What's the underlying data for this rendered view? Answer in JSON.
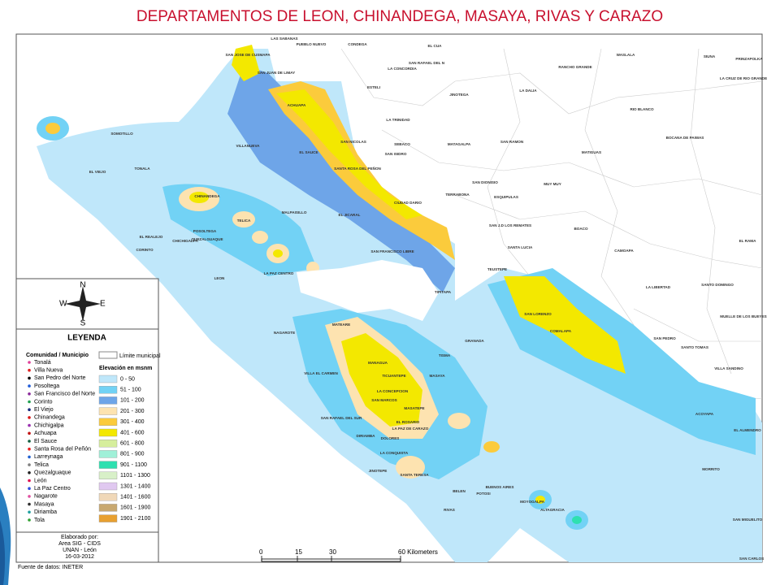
{
  "title": "DEPARTAMENTOS DE LEON, CHINANDEGA, MASAYA, RIVAS Y CARAZO",
  "compass": {
    "n": "N",
    "s": "S",
    "e": "E",
    "w": "W"
  },
  "legend": {
    "heading": "LEYENDA",
    "communities_heading": "Comunidad / Municipio",
    "communities": [
      {
        "name": "Tonalá",
        "color": "#e0409a"
      },
      {
        "name": "Villa Nueva",
        "color": "#e02020"
      },
      {
        "name": "San Pedro del Norte",
        "color": "#000000"
      },
      {
        "name": "Posoltega",
        "color": "#1e5ad8"
      },
      {
        "name": "San Francisco del Norte",
        "color": "#8a2a9a"
      },
      {
        "name": "Corinto",
        "color": "#20a050"
      },
      {
        "name": "El Viejo",
        "color": "#1a2a80"
      },
      {
        "name": "Chinandega",
        "color": "#d81818"
      },
      {
        "name": "Chichigalpa",
        "color": "#9a30b0"
      },
      {
        "name": "Achuapa",
        "color": "#c01010"
      },
      {
        "name": "El Sauce",
        "color": "#106040"
      },
      {
        "name": "Santa Rosa del Peñón",
        "color": "#e82020"
      },
      {
        "name": "Larreynaga",
        "color": "#2060d0"
      },
      {
        "name": "Telica",
        "color": "#808080"
      },
      {
        "name": "Quezalguaque",
        "color": "#202020"
      },
      {
        "name": "León",
        "color": "#e01050"
      },
      {
        "name": "La Paz Centro",
        "color": "#3050e0"
      },
      {
        "name": "Nagarote",
        "color": "#e050a0"
      },
      {
        "name": "Masaya",
        "color": "#303030"
      },
      {
        "name": "Diriamba",
        "color": "#20a0a0"
      },
      {
        "name": "Tola",
        "color": "#30a030"
      }
    ],
    "boundary_label": "Límite municipal",
    "elevation_heading": "Elevación en msnm",
    "elevation_classes": [
      {
        "label": "0 - 50",
        "color": "#bfe7fa"
      },
      {
        "label": "51 - 100",
        "color": "#72d2f5"
      },
      {
        "label": "101 - 200",
        "color": "#6ea5e8"
      },
      {
        "label": "201 - 300",
        "color": "#fde3b0"
      },
      {
        "label": "301 - 400",
        "color": "#fbcb3c"
      },
      {
        "label": "401 - 600",
        "color": "#f3e800"
      },
      {
        "label": "601 - 800",
        "color": "#d6ee9c"
      },
      {
        "label": "801 - 900",
        "color": "#a0f0d8"
      },
      {
        "label": "901 - 1100",
        "color": "#2ee0b0"
      },
      {
        "label": "1101 - 1300",
        "color": "#d8f0c8"
      },
      {
        "label": "1301 - 1400",
        "color": "#e0c8f0"
      },
      {
        "label": "1401 - 1600",
        "color": "#f0d8b8"
      },
      {
        "label": "1601 - 1900",
        "color": "#c8a870"
      },
      {
        "label": "1901 - 2100",
        "color": "#e8a030"
      }
    ]
  },
  "credits": {
    "lines": [
      "Elaborado por:",
      "Area SIG - CIDS",
      "UNAN - León",
      "16-03-2012"
    ],
    "source": "Fuente de datos: INETER"
  },
  "scale": {
    "labels": [
      "0",
      "15",
      "30",
      "60 Kilometers"
    ]
  },
  "places": [
    "LAS SABANAS",
    "PUEBLO NUEVO",
    "CONDEGA",
    "SAN JOSE DE CUSMAPA",
    "EL CUA",
    "WASLALA",
    "SIUNA",
    "PRINZAPOLKA",
    "RANCHO GRANDE",
    "SAN RAFAEL DEL N",
    "LA CONCORDIA",
    "SAN JUAN DE LIMAY",
    "ESTELI",
    "LA CRUZ DE RIO GRANDE",
    "LA DALIA",
    "JINOTEGA",
    "RIO BLANCO",
    "SOMOTILLO",
    "LA TRINIDAD",
    "SAN NICOLAS",
    "SEBACO",
    "MATAGALPA",
    "SAN RAMON",
    "MATIGUAS",
    "BOCANA DE PAIWAS",
    "SAN ISIDRO",
    "EL SAUCE",
    "VILLANUEVA",
    "ACHUAPA",
    "EL VIEJO",
    "TONALA",
    "SANTA ROSA DEL PEÑON",
    "CHINANDEGA",
    "SAN DIONISIO",
    "MUY MUY",
    "CIUDAD DARIO",
    "TERRABONA",
    "ESQUIPULAS",
    "TELICA",
    "MALPAISILLO",
    "EL JICARAL",
    "POSOLTEGA",
    "QUEZALGUAQUE",
    "CHICHIGALPA",
    "EL REALEJO",
    "CORINTO",
    "SAN J.D LOS REMATES",
    "BOACO",
    "SANTA LUCIA",
    "CAMOAPA",
    "EL RAMA",
    "SAN FRANCISCO LIBRE",
    "TEUSTEPE",
    "LA PAZ CENTRO",
    "LEON",
    "LA LIBERTAD",
    "SANTO DOMINGO",
    "TIPITAPA",
    "SAN LORENZO",
    "COMALAPA",
    "MUELLE DE LOS BUEYES",
    "NAGAROTE",
    "MATEARE",
    "GRANADA",
    "SANTO TOMAS",
    "SAN PEDRO",
    "MANAGUA",
    "TISMA",
    "VILLA EL CARMEN",
    "TICUANTEPE",
    "MASAYA",
    "LA CONCEPCION",
    "SAN MARCOS",
    "MASATEPE",
    "SAN RAFAEL DEL SUR",
    "DIRIAMBA",
    "DOLORES",
    "EL ROSARIO",
    "LA PAZ DE CARAZO",
    "JINOTEPE",
    "LA CONQUISTA",
    "SANTA TERESA",
    "BELEN",
    "BUENOS AIRES",
    "POTOSI",
    "MOYOGALPA",
    "ALTAGRACIA",
    "RIVAS",
    "VILLA SANDINO",
    "ACOYAPA",
    "EL ALMENDRO",
    "MORRITO",
    "SAN MIGUELITO",
    "SAN CARLOS"
  ]
}
